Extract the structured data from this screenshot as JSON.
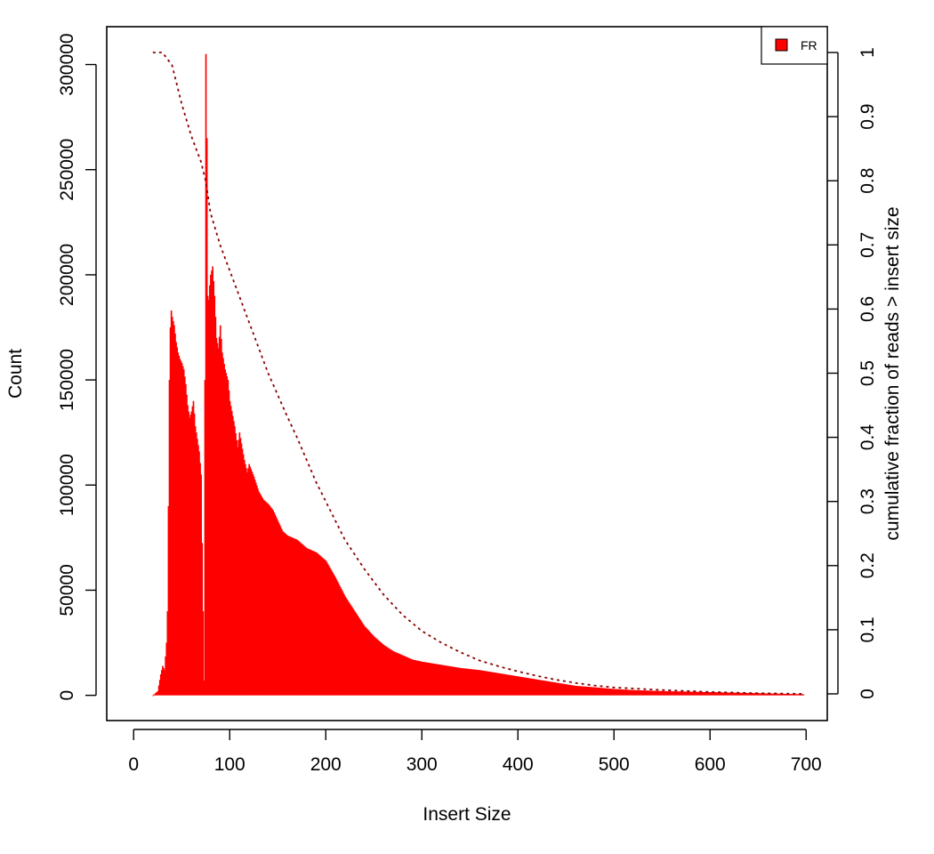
{
  "chart_data": {
    "type": "bar",
    "title": "",
    "xlabel": "Insert Size",
    "ylabel": "Count",
    "y2label": "cumulative fraction of reads > insert size",
    "xlim": [
      -28,
      722
    ],
    "ylim": [
      -12000,
      318000
    ],
    "y2lim": [
      0,
      1
    ],
    "xticks": [
      0,
      100,
      200,
      300,
      400,
      500,
      600,
      700
    ],
    "yticks": [
      0,
      50000,
      100000,
      150000,
      200000,
      250000,
      300000
    ],
    "y2ticks": [
      0,
      0.1,
      0.2,
      0.3,
      0.4,
      0.5,
      0.6,
      0.7,
      0.8,
      0.9,
      1
    ],
    "legend": {
      "position": "top-right",
      "entries": [
        {
          "label": "FR",
          "color": "#ff0000"
        }
      ]
    },
    "colors": {
      "bars": "#ff0000",
      "cumulative_line": "#8b0000",
      "axes": "#000000"
    },
    "series": [
      {
        "name": "FR",
        "kind": "histogram",
        "x": [
          20,
          25,
          28,
          30,
          32,
          34,
          35,
          36,
          37,
          38,
          39,
          40,
          42,
          44,
          46,
          48,
          50,
          52,
          54,
          56,
          58,
          60,
          62,
          64,
          65,
          66,
          68,
          70,
          72,
          73,
          74,
          75,
          76,
          77,
          78,
          79,
          80,
          82,
          84,
          86,
          88,
          90,
          92,
          95,
          98,
          100,
          105,
          108,
          110,
          115,
          118,
          120,
          125,
          130,
          135,
          140,
          145,
          150,
          155,
          160,
          165,
          170,
          175,
          180,
          185,
          190,
          195,
          200,
          210,
          220,
          230,
          240,
          250,
          260,
          270,
          280,
          290,
          300,
          320,
          340,
          360,
          380,
          400,
          420,
          440,
          460,
          480,
          500,
          520,
          550,
          600,
          650,
          697
        ],
        "values": [
          0,
          2000,
          10000,
          14000,
          12000,
          25000,
          40000,
          90000,
          150000,
          175000,
          183000,
          180000,
          176000,
          168000,
          163000,
          160000,
          158000,
          155000,
          148000,
          138000,
          132000,
          135000,
          140000,
          128000,
          125000,
          122000,
          116000,
          105000,
          40000,
          7000,
          150000,
          305000,
          265000,
          190000,
          188000,
          195000,
          200000,
          204000,
          190000,
          170000,
          165000,
          176000,
          163000,
          155000,
          150000,
          140000,
          128000,
          118000,
          125000,
          112000,
          106000,
          110000,
          104000,
          97000,
          93000,
          91000,
          88000,
          83000,
          78000,
          76000,
          75000,
          74000,
          72000,
          70000,
          69000,
          68000,
          66000,
          64000,
          56000,
          47000,
          40000,
          33000,
          28000,
          24000,
          21000,
          19000,
          17000,
          16000,
          14500,
          13000,
          12000,
          10500,
          9000,
          7500,
          6000,
          4500,
          3800,
          3000,
          2500,
          2000,
          1500,
          1000,
          500
        ]
      },
      {
        "name": "",
        "kind": "cumulative_fraction",
        "axis": "right",
        "line_style": "dotted",
        "x": [
          20,
          30,
          35,
          40,
          45,
          50,
          60,
          70,
          75,
          80,
          90,
          100,
          110,
          120,
          130,
          140,
          150,
          160,
          170,
          180,
          190,
          200,
          220,
          240,
          260,
          280,
          300,
          320,
          340,
          360,
          380,
          400,
          420,
          440,
          460,
          480,
          500,
          550,
          600,
          650,
          697
        ],
        "values": [
          1.0,
          1.0,
          0.99,
          0.98,
          0.95,
          0.92,
          0.87,
          0.83,
          0.8,
          0.75,
          0.7,
          0.66,
          0.62,
          0.58,
          0.54,
          0.5,
          0.466,
          0.432,
          0.4,
          0.365,
          0.33,
          0.3,
          0.24,
          0.195,
          0.155,
          0.123,
          0.098,
          0.08,
          0.065,
          0.052,
          0.043,
          0.035,
          0.028,
          0.022,
          0.017,
          0.013,
          0.01,
          0.006,
          0.003,
          0.001,
          0.0
        ]
      }
    ]
  }
}
